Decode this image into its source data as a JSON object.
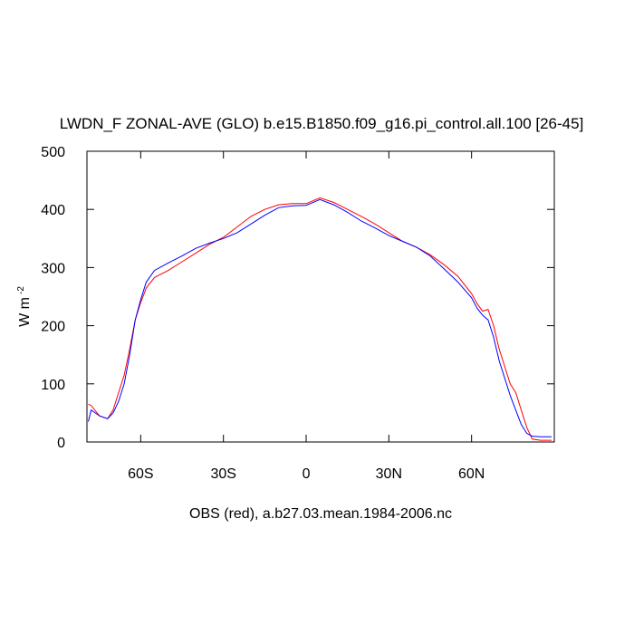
{
  "chart_data": {
    "type": "line",
    "title": "LWDN_F ZONAL-AVE (GLO) b.e15.B1850.f09_g16.pi_control.all.100 [26-45]",
    "ylabel": "W m",
    "ylabel_sup": "-2",
    "xlabel": "OBS (red), a.b27.03.mean.1984-2006.nc",
    "xlim": [
      -79.5,
      90
    ],
    "ylim": [
      0,
      500
    ],
    "xticks": [
      {
        "value": -60,
        "label": "60S"
      },
      {
        "value": -30,
        "label": "30S"
      },
      0,
      {
        "value": 30,
        "label": "30N"
      },
      {
        "value": 60,
        "label": "60N"
      }
    ],
    "yticks": [
      0,
      100,
      200,
      300,
      400,
      500
    ],
    "x": [
      -79,
      -78,
      -75,
      -72,
      -70,
      -68,
      -66,
      -64,
      -62,
      -60,
      -58,
      -55,
      -50,
      -45,
      -40,
      -35,
      -30,
      -25,
      -20,
      -15,
      -10,
      -5,
      0,
      5,
      10,
      15,
      20,
      25,
      30,
      35,
      40,
      45,
      50,
      55,
      60,
      62,
      64,
      66,
      68,
      70,
      72,
      74,
      76,
      78,
      80,
      82,
      85,
      89
    ],
    "series": [
      {
        "color": "#ff0000",
        "values": [
          65,
          63,
          45,
          40,
          55,
          85,
          115,
          160,
          210,
          240,
          265,
          283,
          295,
          310,
          325,
          340,
          352,
          370,
          388,
          400,
          408,
          410,
          410,
          420,
          412,
          400,
          388,
          375,
          360,
          345,
          335,
          322,
          305,
          285,
          255,
          238,
          225,
          228,
          200,
          160,
          130,
          100,
          85,
          55,
          25,
          5,
          3,
          3
        ]
      },
      {
        "color": "#0000ff",
        "values": [
          35,
          55,
          45,
          40,
          50,
          70,
          100,
          150,
          210,
          245,
          275,
          295,
          308,
          320,
          333,
          342,
          350,
          360,
          375,
          390,
          403,
          406,
          407,
          417,
          408,
          395,
          380,
          368,
          355,
          345,
          335,
          320,
          298,
          275,
          248,
          230,
          218,
          210,
          180,
          140,
          110,
          80,
          55,
          30,
          15,
          10,
          9,
          9
        ]
      }
    ]
  }
}
